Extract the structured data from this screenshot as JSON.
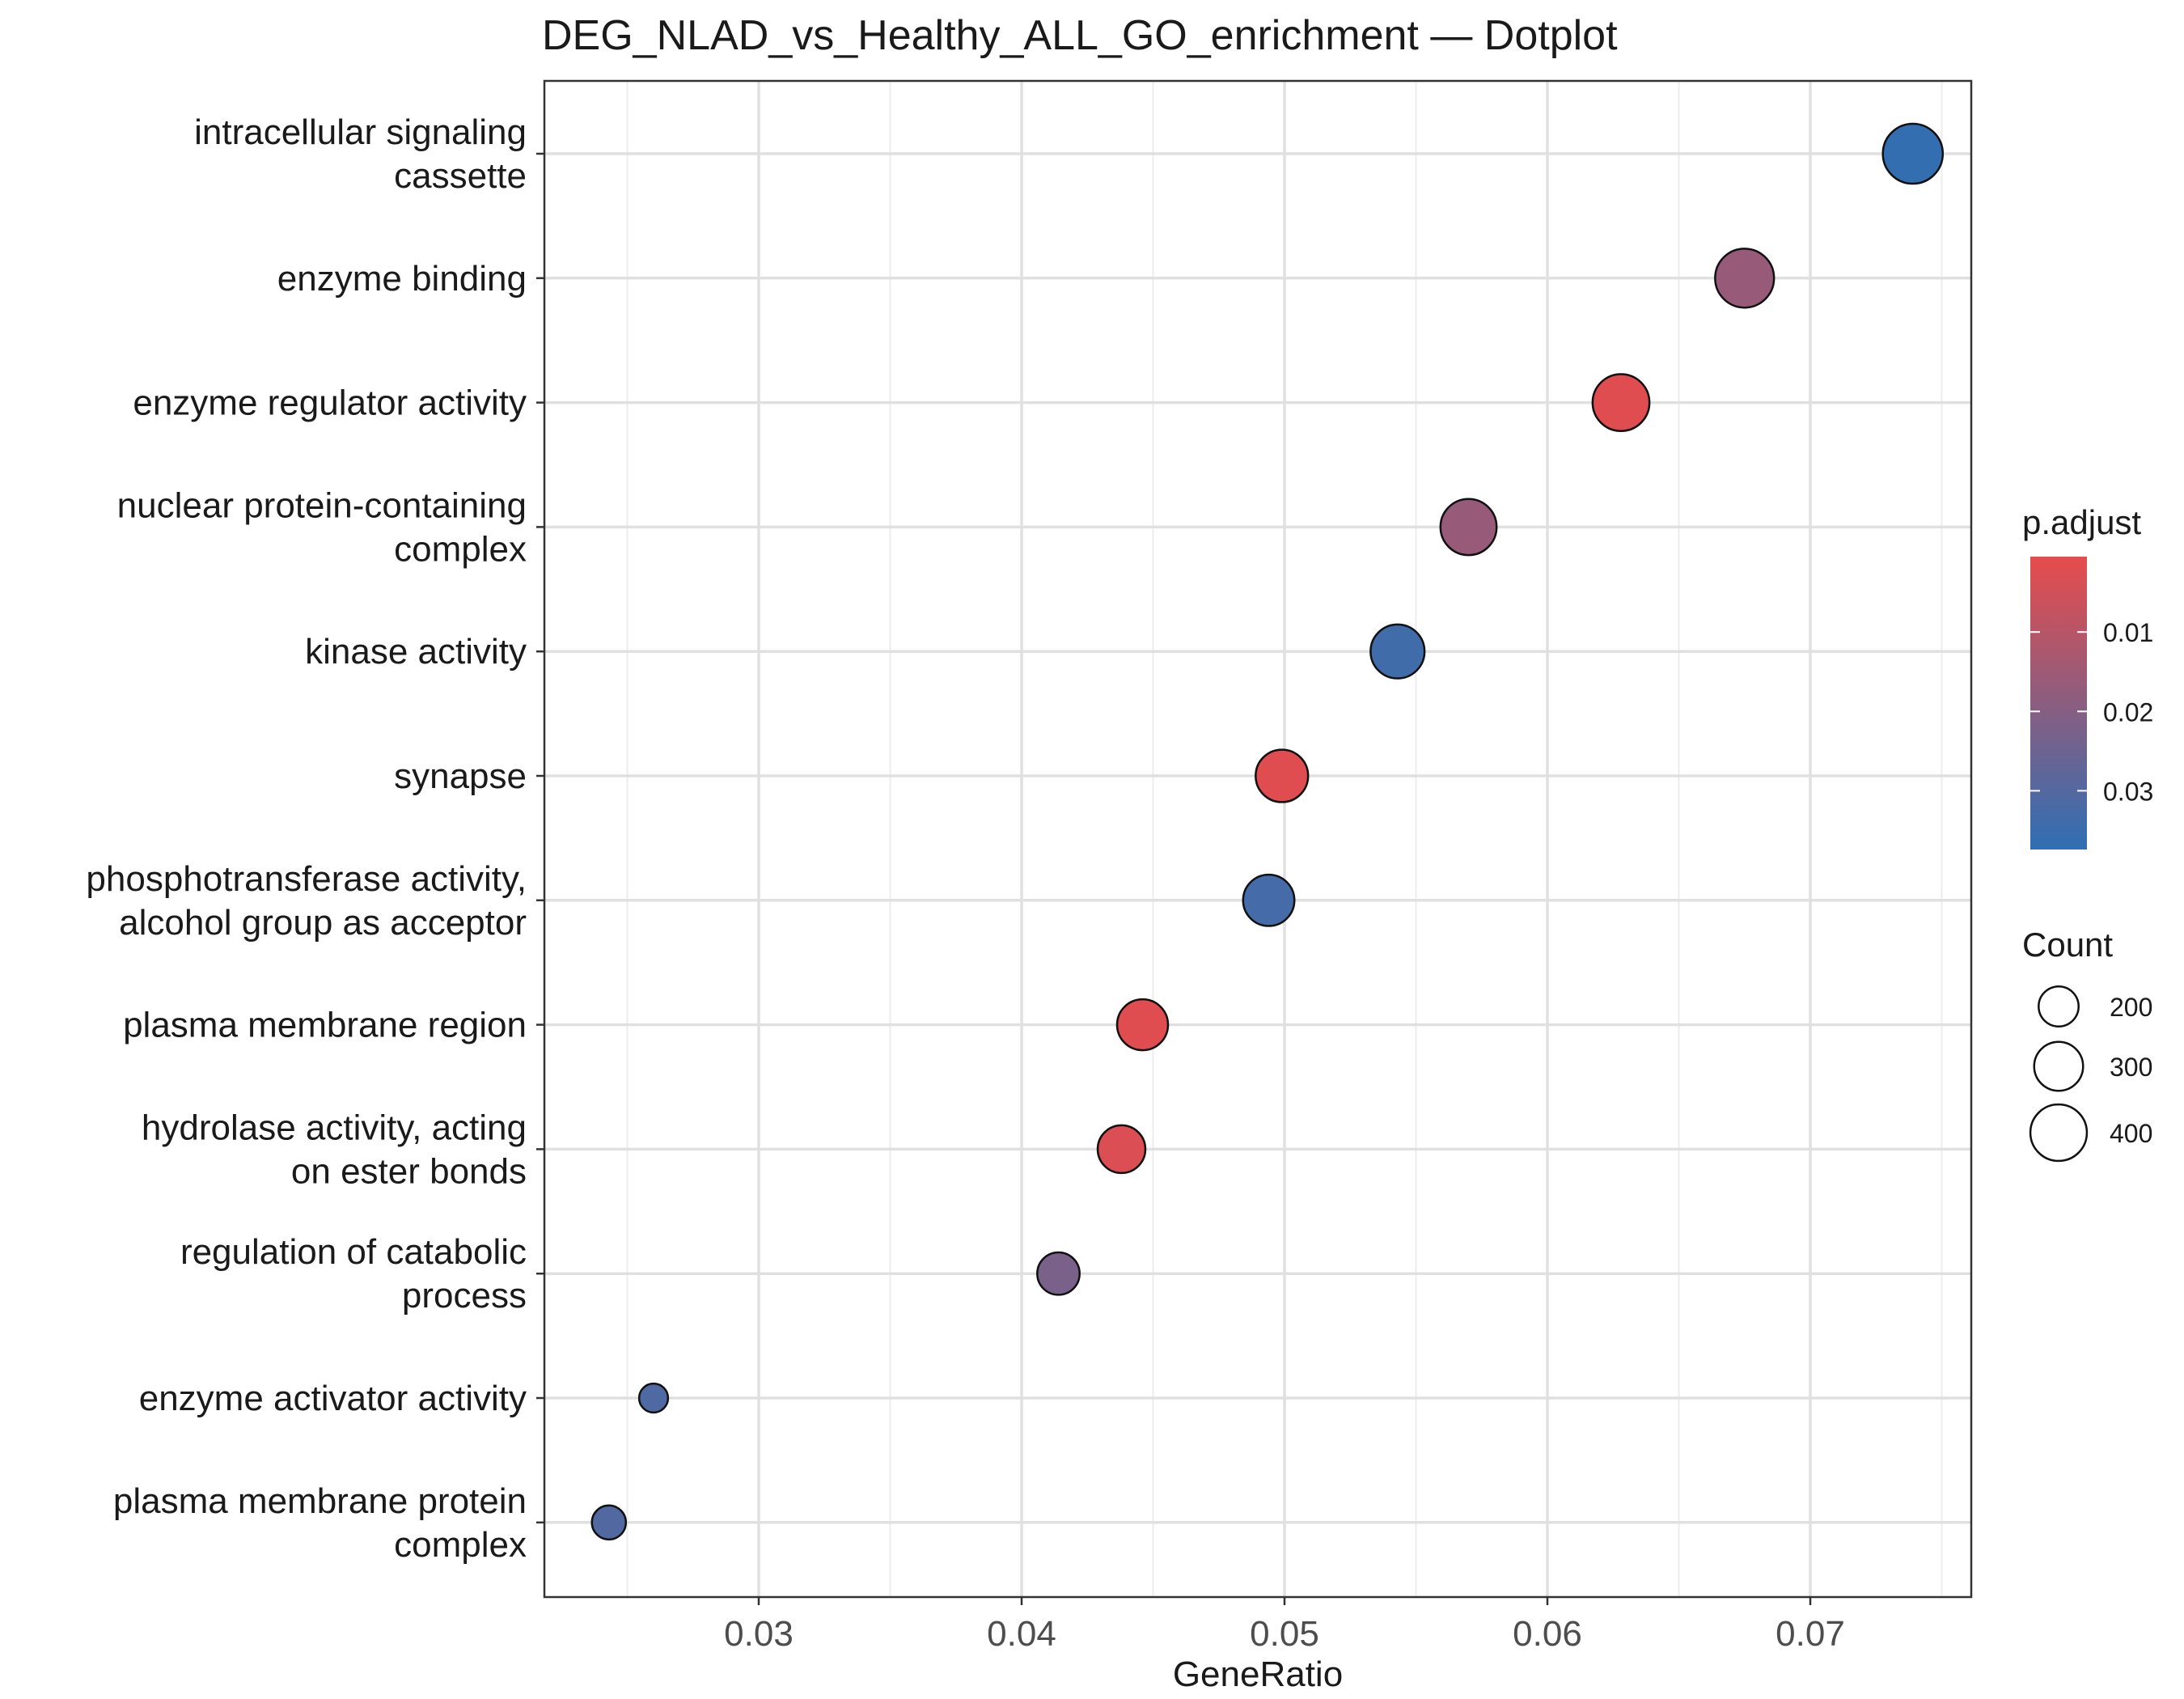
{
  "chart_data": {
    "type": "scatter",
    "title": "DEG_NLAD_vs_Healthy_ALL_GO_enrichment — Dotplot",
    "xlabel": "GeneRatio",
    "ylabel": "",
    "xlim": [
      0.0218,
      0.0763
    ],
    "x_ticks": [
      0.03,
      0.04,
      0.05,
      0.06,
      0.07
    ],
    "x_tick_labels": [
      "0.03",
      "0.04",
      "0.05",
      "0.06",
      "0.07"
    ],
    "grid": true,
    "color_scale": {
      "title": "p.adjust",
      "low_color": "#e74c4c",
      "high_color": "#2f6fb4",
      "range": [
        0.0005,
        0.0374
      ],
      "ticks": [
        0.01,
        0.02,
        0.03
      ],
      "tick_labels": [
        "0.01",
        "0.02",
        "0.03"
      ]
    },
    "size_legend": {
      "title": "Count",
      "values": [
        200,
        300,
        400
      ],
      "labels": [
        "200",
        "300",
        "400"
      ]
    },
    "points": [
      {
        "term": [
          "intracellular signaling",
          "cassette"
        ],
        "gene_ratio": 0.0739,
        "count": 450,
        "p_adjust": 0.0365
      },
      {
        "term": [
          "enzyme binding"
        ],
        "gene_ratio": 0.0675,
        "count": 435,
        "p_adjust": 0.0165
      },
      {
        "term": [
          "enzyme regulator activity"
        ],
        "gene_ratio": 0.0628,
        "count": 405,
        "p_adjust": 0.002
      },
      {
        "term": [
          "nuclear protein-containing",
          "complex"
        ],
        "gene_ratio": 0.057,
        "count": 395,
        "p_adjust": 0.0165
      },
      {
        "term": [
          "kinase activity"
        ],
        "gene_ratio": 0.0543,
        "count": 365,
        "p_adjust": 0.034
      },
      {
        "term": [
          "synapse"
        ],
        "gene_ratio": 0.0499,
        "count": 345,
        "p_adjust": 0.002
      },
      {
        "term": [
          "phosphotransferase activity,",
          "alcohol group as acceptor"
        ],
        "gene_ratio": 0.0494,
        "count": 330,
        "p_adjust": 0.033
      },
      {
        "term": [
          "plasma membrane region"
        ],
        "gene_ratio": 0.0446,
        "count": 325,
        "p_adjust": 0.002
      },
      {
        "term": [
          "hydrolase activity, acting",
          "on ester bonds"
        ],
        "gene_ratio": 0.0438,
        "count": 285,
        "p_adjust": 0.003
      },
      {
        "term": [
          "regulation of catabolic",
          "process"
        ],
        "gene_ratio": 0.0414,
        "count": 225,
        "p_adjust": 0.0225
      },
      {
        "term": [
          "enzyme activator activity"
        ],
        "gene_ratio": 0.026,
        "count": 105,
        "p_adjust": 0.031
      },
      {
        "term": [
          "plasma membrane protein",
          "complex"
        ],
        "gene_ratio": 0.0243,
        "count": 145,
        "p_adjust": 0.0305
      }
    ]
  }
}
